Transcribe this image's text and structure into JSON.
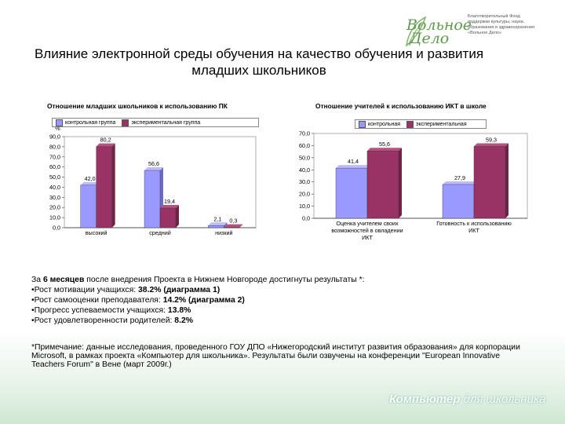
{
  "title": "Влияние электронной среды обучения на качество обучения и развития младших школьников",
  "logo": {
    "word_line1": "Вольное",
    "word_line2": "Дело",
    "lines": [
      "Благотворительный Фонд",
      "поддержки культуры, науки,",
      "образования и здравоохранения",
      "«Вольное Дело»"
    ]
  },
  "colors": {
    "control": "#9999ff",
    "experimental": "#993366"
  },
  "chart_data": [
    {
      "type": "bar",
      "title": "Отношение младших школьников к использованию ПК",
      "ylabel": "%",
      "categories": [
        "высокий",
        "средний",
        "низкий"
      ],
      "series": [
        {
          "name": "контрольная группа",
          "values": [
            42.0,
            56.6,
            2.1
          ]
        },
        {
          "name": "экспериментальная группа",
          "values": [
            80.2,
            19.4,
            0.3
          ]
        }
      ],
      "value_labels": [
        [
          "42,0",
          "56,6",
          "2,1"
        ],
        [
          "80,2",
          "19,4",
          "0,3"
        ]
      ],
      "yticks": [
        "0,0",
        "10,0",
        "20,0",
        "30,0",
        "40,0",
        "50,0",
        "60,0",
        "70,0",
        "80,0",
        "90,0"
      ],
      "ylim": [
        0,
        90
      ],
      "legend": "top"
    },
    {
      "type": "bar",
      "title": "Отношение учителей к использованию ИКТ в школе",
      "ylabel": "%",
      "categories": [
        "Оценка учителем своих возможностей в овладении ИКТ",
        "Готовность к использованию ИКТ"
      ],
      "series": [
        {
          "name": "контрольная",
          "values": [
            41.4,
            27.9
          ]
        },
        {
          "name": "экспериментальная",
          "values": [
            55.6,
            59.3
          ]
        }
      ],
      "value_labels": [
        [
          "41,4",
          "27,9"
        ],
        [
          "55,6",
          "59,3"
        ]
      ],
      "yticks": [
        "0,0",
        "10,0",
        "20,0",
        "30,0",
        "40,0",
        "50,0",
        "60,0",
        "70,0"
      ],
      "ylim": [
        0,
        70
      ],
      "legend": "top"
    }
  ],
  "body": {
    "intro_pre": "За ",
    "intro_bold": "6 месяцев",
    "intro_post": " после внедрения Проекта в Нижнем Новгороде достигнуты результаты *:",
    "items": [
      {
        "label": "•Рост мотивации учащихся: ",
        "value": " 38.2%  (диаграмма 1)"
      },
      {
        "label": "•Рост самооценки преподавателя: ",
        "value": "14.2% (диаграмма 2)"
      },
      {
        "label": "•Прогресс успеваемости учащихся: ",
        "value": "13.8%"
      },
      {
        "label": "•Рост удовлетворенности родителей: ",
        "value": "8.2%"
      }
    ]
  },
  "note": "*Примечание: данные исследования, проведенного ГОУ ДПО «Нижегородский институт развития образования» для корпорации Microsoft, в рамках проекта «Компьютер для школьника». Результаты были озвучены на конференции \"European Innovative Teachers Forum\" в Вене (март 2009г.)",
  "footer": {
    "bold": "Компьютер",
    "rest": " для школьника"
  }
}
